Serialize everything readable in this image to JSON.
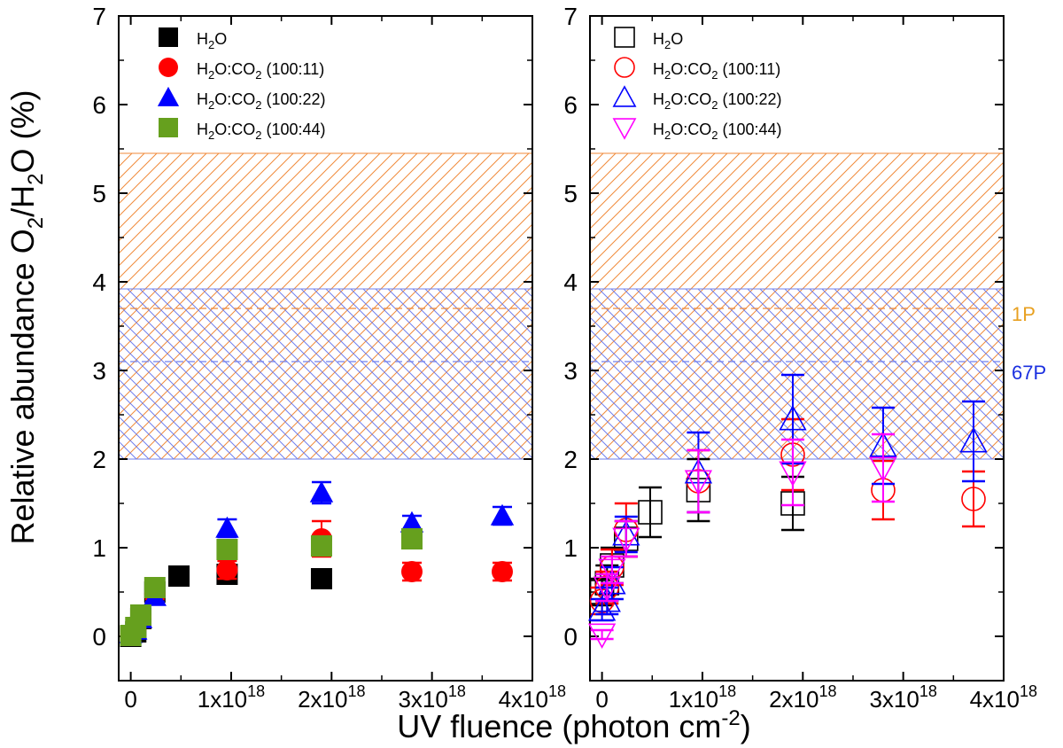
{
  "chart_data": {
    "type": "scatter",
    "ylabel": {
      "main": "Relative abundance O",
      "sub1": "2",
      "mid": "/H",
      "sub2": "2",
      "tail": "O (%)"
    },
    "xlabel": {
      "main": "UV fluence (photon cm",
      "sup": "-2",
      "tail": ")"
    },
    "x_ticks": [
      {
        "value": 0,
        "base": "0",
        "exp": ""
      },
      {
        "value": 1e+18,
        "base": "1x10",
        "exp": "18"
      },
      {
        "value": 2e+18,
        "base": "2x10",
        "exp": "18"
      },
      {
        "value": 3e+18,
        "base": "3x10",
        "exp": "18"
      },
      {
        "value": 4e+18,
        "base": "4x10",
        "exp": "18"
      }
    ],
    "y_ticks": [
      0,
      1,
      2,
      3,
      4,
      5,
      6,
      7
    ],
    "xlim": [
      -1.2e+17,
      4e+18
    ],
    "ylim": [
      -0.5,
      7
    ],
    "comet_bands": [
      {
        "name": "1P",
        "color": "#f08a3a",
        "range": [
          2.0,
          5.45
        ],
        "mean": 3.7,
        "label_color": "#e8a020"
      },
      {
        "name": "67P",
        "color": "#7080ee",
        "range": [
          2.0,
          3.92
        ],
        "mean": 3.1,
        "label_color": "#1a2fe0"
      }
    ],
    "panels": [
      {
        "id": "left",
        "filled": true,
        "series": [
          {
            "name": {
              "pre": "H",
              "sub1": "2",
              "mid": "O",
              "sub2": "",
              "post": ""
            },
            "marker": "square",
            "color": "#000000",
            "points": [
              [
                0,
                0,
                0.05
              ],
              [
                5e+16,
                0.05,
                0.05
              ],
              [
                1e+17,
                0.2,
                0.06
              ],
              [
                2.4e+17,
                0.5,
                0.06
              ],
              [
                4.8e+17,
                0.68,
                0.06
              ],
              [
                9.6e+17,
                0.7,
                0.08
              ],
              [
                1.9e+18,
                0.65,
                0.07
              ]
            ]
          },
          {
            "name": {
              "pre": "H",
              "sub1": "2",
              "mid": "O:CO",
              "sub2": "2",
              "post": " (100:11)"
            },
            "marker": "circle",
            "color": "#ff0000",
            "points": [
              [
                0,
                0.02,
                0.05
              ],
              [
                5e+16,
                0.08,
                0.05
              ],
              [
                1e+17,
                0.22,
                0.06
              ],
              [
                2.4e+17,
                0.48,
                0.06
              ],
              [
                9.6e+17,
                0.75,
                0.1
              ],
              [
                1.9e+18,
                1.1,
                0.2
              ],
              [
                2.8e+18,
                0.73,
                0.1
              ],
              [
                3.7e+18,
                0.73,
                0.1
              ]
            ]
          },
          {
            "name": {
              "pre": "H",
              "sub1": "2",
              "mid": "O:CO",
              "sub2": "2",
              "post": " (100:22)"
            },
            "marker": "triangle",
            "color": "#0000ff",
            "points": [
              [
                0,
                0.03,
                0.05
              ],
              [
                5e+16,
                0.07,
                0.05
              ],
              [
                1e+17,
                0.2,
                0.06
              ],
              [
                2.4e+17,
                0.45,
                0.06
              ],
              [
                9.6e+17,
                1.22,
                0.1
              ],
              [
                1.9e+18,
                1.62,
                0.12
              ],
              [
                2.8e+18,
                1.28,
                0.08
              ],
              [
                3.7e+18,
                1.36,
                0.1
              ]
            ]
          },
          {
            "name": {
              "pre": "H",
              "sub1": "2",
              "mid": "O:CO",
              "sub2": "2",
              "post": " (100:44)"
            },
            "marker": "square",
            "color": "#66a01e",
            "points": [
              [
                0,
                0.01,
                0.05
              ],
              [
                5e+16,
                0.1,
                0.05
              ],
              [
                1e+17,
                0.24,
                0.06
              ],
              [
                2.4e+17,
                0.55,
                0.06
              ],
              [
                9.6e+17,
                0.98,
                0.1
              ],
              [
                1.9e+18,
                1.02,
                0.1
              ],
              [
                2.8e+18,
                1.1,
                0.08
              ]
            ]
          }
        ]
      },
      {
        "id": "right",
        "filled": false,
        "series": [
          {
            "name": {
              "pre": "H",
              "sub1": "2",
              "mid": "O",
              "sub2": "",
              "post": ""
            },
            "marker": "square",
            "color": "#000000",
            "points": [
              [
                0,
                0.5,
                0.15
              ],
              [
                5e+16,
                0.6,
                0.2
              ],
              [
                1e+17,
                0.8,
                0.2
              ],
              [
                2.4e+17,
                1.1,
                0.2
              ],
              [
                4.8e+17,
                1.4,
                0.28
              ],
              [
                9.6e+17,
                1.65,
                0.35
              ],
              [
                1.9e+18,
                1.5,
                0.3
              ]
            ]
          },
          {
            "name": {
              "pre": "H",
              "sub1": "2",
              "mid": "O:CO",
              "sub2": "2",
              "post": " (100:11)"
            },
            "marker": "circle",
            "color": "#ff0000",
            "points": [
              [
                0,
                0.4,
                0.15
              ],
              [
                5e+16,
                0.55,
                0.18
              ],
              [
                1e+17,
                0.78,
                0.2
              ],
              [
                2.4e+17,
                1.2,
                0.3
              ],
              [
                9.6e+17,
                1.75,
                0.35
              ],
              [
                1.9e+18,
                2.05,
                0.4
              ],
              [
                2.8e+18,
                1.65,
                0.33
              ],
              [
                3.7e+18,
                1.55,
                0.31
              ]
            ]
          },
          {
            "name": {
              "pre": "H",
              "sub1": "2",
              "mid": "O:CO",
              "sub2": "2",
              "post": " (100:22)"
            },
            "marker": "triangle",
            "color": "#0000ff",
            "points": [
              [
                0,
                0.3,
                0.12
              ],
              [
                5e+16,
                0.4,
                0.15
              ],
              [
                1e+17,
                0.6,
                0.18
              ],
              [
                2.4e+17,
                1.15,
                0.2
              ],
              [
                9.6e+17,
                1.85,
                0.45
              ],
              [
                1.9e+18,
                2.45,
                0.5
              ],
              [
                2.8e+18,
                2.15,
                0.43
              ],
              [
                3.7e+18,
                2.2,
                0.45
              ]
            ]
          },
          {
            "name": {
              "pre": "H",
              "sub1": "2",
              "mid": "O:CO",
              "sub2": "2",
              "post": " (100:44)"
            },
            "marker": "triangle-down",
            "color": "#ff00ff",
            "points": [
              [
                0,
                0.02,
                0.05
              ],
              [
                5e+16,
                0.55,
                0.15
              ],
              [
                1e+17,
                0.75,
                0.15
              ],
              [
                2.4e+17,
                1.1,
                0.2
              ],
              [
                9.6e+17,
                1.75,
                0.35
              ],
              [
                1.9e+18,
                1.85,
                0.37
              ],
              [
                2.8e+18,
                1.9,
                0.38
              ]
            ]
          }
        ]
      }
    ]
  }
}
